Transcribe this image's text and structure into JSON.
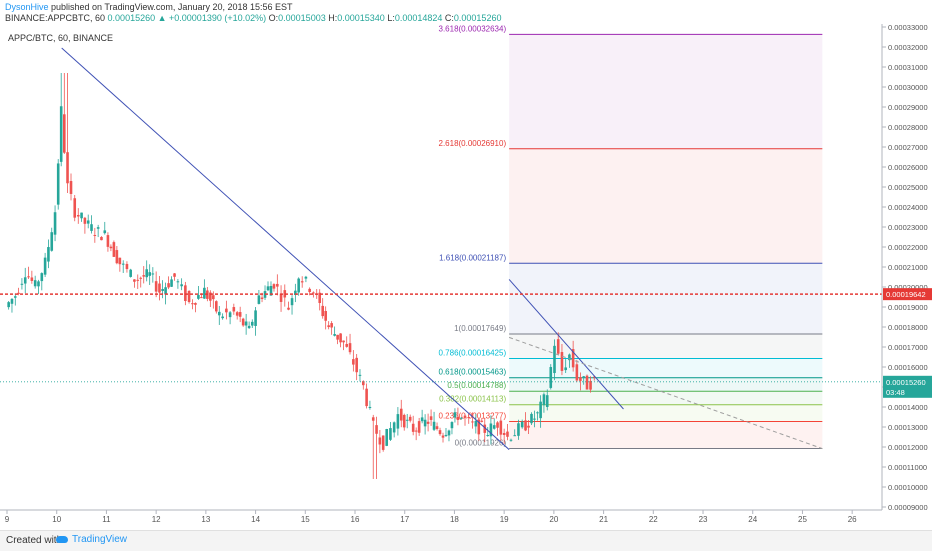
{
  "header": {
    "user": "DysonHive",
    "publish_text": " published on TradingView.com, January 20, 2018 15:56 EST",
    "symbol": "BINANCE:APPCBTC, 60",
    "last": "0.00015260",
    "change": "▲ +0.00001390 (+10.02%)",
    "o_label": "O:",
    "o_value": "0.00015003",
    "h_label": "H:",
    "h_value": "0.00015340",
    "l_label": "L:",
    "l_value": "0.00014824",
    "c_label": "C:",
    "c_value": "0.00015260"
  },
  "footer": {
    "created_with": "Created with",
    "brand": "TradingView"
  },
  "colors": {
    "up": "#26a69a",
    "down": "#ef5350",
    "trend": "#3f51b5",
    "hline": "#e53935"
  },
  "chart_data": {
    "type": "candlestick",
    "title": "APPC/BTC, 60, BINANCE",
    "x_axis": {
      "type": "date",
      "ticks": [
        "9",
        "10",
        "11",
        "12",
        "13",
        "14",
        "15",
        "16",
        "17",
        "18",
        "19",
        "20",
        "21",
        "22",
        "23",
        "24",
        "25",
        "26"
      ],
      "range": [
        9,
        26.6
      ]
    },
    "y_axis": {
      "range": [
        8.85e-05,
        0.0003315
      ],
      "ticks": [
        "0.00009000",
        "0.00010000",
        "0.00011000",
        "0.00012000",
        "0.00013000",
        "0.00014000",
        "0.00015000",
        "0.00016000",
        "0.00017000",
        "0.00018000",
        "0.00019000",
        "0.00020000",
        "0.00021000",
        "0.00022000",
        "0.00023000",
        "0.00024000",
        "0.00025000",
        "0.00026000",
        "0.00027000",
        "0.00028000",
        "0.00029000",
        "0.00030000",
        "0.00031000",
        "0.00032000",
        "0.00033000"
      ]
    },
    "price_points": [
      [
        9.0,
        0.00019
      ],
      [
        9.2,
        0.000196
      ],
      [
        9.4,
        0.000208
      ],
      [
        9.6,
        0.0002
      ],
      [
        9.8,
        0.000212
      ],
      [
        10.0,
        0.000238
      ],
      [
        10.12,
        0.000288
      ],
      [
        10.25,
        0.00025
      ],
      [
        10.4,
        0.000238
      ],
      [
        10.6,
        0.000232
      ],
      [
        10.8,
        0.000228
      ],
      [
        11.0,
        0.000226
      ],
      [
        11.3,
        0.000212
      ],
      [
        11.6,
        0.000204
      ],
      [
        11.9,
        0.000206
      ],
      [
        12.1,
        0.000198
      ],
      [
        12.4,
        0.000205
      ],
      [
        12.7,
        0.000192
      ],
      [
        13.0,
        0.000198
      ],
      [
        13.3,
        0.000186
      ],
      [
        13.6,
        0.000187
      ],
      [
        13.9,
        0.000178
      ],
      [
        14.1,
        0.000195
      ],
      [
        14.4,
        0.000202
      ],
      [
        14.7,
        0.00019
      ],
      [
        14.9,
        0.000206
      ],
      [
        15.2,
        0.000198
      ],
      [
        15.5,
        0.00018
      ],
      [
        15.8,
        0.000172
      ],
      [
        16.0,
        0.000162
      ],
      [
        16.2,
        0.00015
      ],
      [
        16.4,
        0.00013
      ],
      [
        16.6,
        0.000122
      ],
      [
        16.9,
        0.000136
      ],
      [
        17.2,
        0.000129
      ],
      [
        17.5,
        0.000133
      ],
      [
        17.8,
        0.000127
      ],
      [
        18.1,
        0.000136
      ],
      [
        18.4,
        0.000131
      ],
      [
        18.7,
        0.000128
      ],
      [
        18.9,
        0.000132
      ],
      [
        19.1,
        0.000125
      ],
      [
        19.4,
        0.00013
      ],
      [
        19.7,
        0.000136
      ],
      [
        19.9,
        0.000147
      ],
      [
        20.05,
        0.000172
      ],
      [
        20.2,
        0.000158
      ],
      [
        20.35,
        0.000166
      ],
      [
        20.5,
        0.000155
      ],
      [
        20.7,
        0.000151
      ],
      [
        20.85,
        0.000153
      ]
    ],
    "trendlines": [
      {
        "x1": 10.1,
        "y1": 0.0003195,
        "x2": 19.1,
        "y2": 0.0001187
      },
      {
        "x1": 19.1,
        "y1": 0.0002038,
        "x2": 21.4,
        "y2": 0.000139
      },
      {
        "x1": 19.1,
        "y1": 0.0001748,
        "x2": 25.4,
        "y2": 0.0001192,
        "style": "dashed"
      }
    ],
    "fib_extension": {
      "x_start": 19.1,
      "x_end": 25.4,
      "levels": [
        {
          "label": "0(0.00011926)",
          "value": 0.00011926,
          "color": "#787b86"
        },
        {
          "label": "0.236(0.00013277)",
          "value": 0.00013277,
          "color": "#f44336"
        },
        {
          "label": "0.382(0.00014113)",
          "value": 0.00014113,
          "color": "#8bc34a"
        },
        {
          "label": "0.5(0.00014788)",
          "value": 0.00014788,
          "color": "#4caf50"
        },
        {
          "label": "0.618(0.00015463)",
          "value": 0.00015463,
          "color": "#009688"
        },
        {
          "label": "0.786(0.00016425)",
          "value": 0.00016425,
          "color": "#00bcd4"
        },
        {
          "label": "1(0.00017649)",
          "value": 0.00017649,
          "color": "#787b86"
        },
        {
          "label": "1.618(0.00021187)",
          "value": 0.00021187,
          "color": "#3f51b5"
        },
        {
          "label": "2.618(0.00026910)",
          "value": 0.0002691,
          "color": "#e53935"
        },
        {
          "label": "3.618(0.00032634)",
          "value": 0.00032634,
          "color": "#9c27b0"
        }
      ]
    },
    "horizontal_line": {
      "value": 0.00019642,
      "label": "0.00019642"
    },
    "last_price": {
      "value": 0.0001526,
      "label": "0.00015260",
      "countdown": "03:48"
    }
  }
}
